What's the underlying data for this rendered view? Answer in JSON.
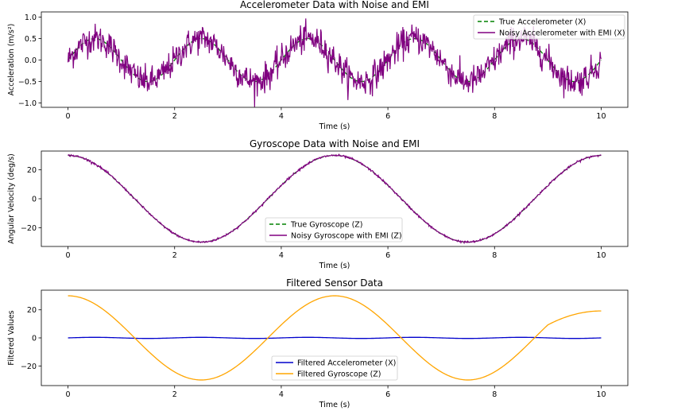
{
  "chart_data": [
    {
      "type": "line",
      "title": "Accelerometer Data with Noise and EMI",
      "xlabel": "Time (s)",
      "ylabel": "Acceleration (m/s²)",
      "xlim": [
        -0.5,
        10.5
      ],
      "ylim": [
        -1.1,
        1.12
      ],
      "xticks": [
        0,
        2,
        4,
        6,
        8,
        10
      ],
      "xtick_labels": [
        "0",
        "2",
        "4",
        "6",
        "8",
        "10"
      ],
      "yticks": [
        -1.0,
        -0.5,
        0.0,
        0.5,
        1.0
      ],
      "ytick_labels": [
        "−1.0",
        "−0.5",
        "0.0",
        "0.5",
        "1.0"
      ],
      "legend": "upper right",
      "grid": false,
      "series": [
        {
          "name": "True Accelerometer (X)",
          "style": "dashed",
          "color": "#008000",
          "function": "0.5*sin(2*pi*0.5*t)",
          "t_range": [
            0,
            10
          ]
        },
        {
          "name": "Noisy Accelerometer with EMI (X)",
          "style": "solid",
          "color": "#800080",
          "function": "0.5*sin(2*pi*0.5*t) + noise",
          "noise_amplitude": 0.2,
          "t_range": [
            0,
            10
          ]
        }
      ]
    },
    {
      "type": "line",
      "title": "Gyroscope Data with Noise and EMI",
      "xlabel": "Time (s)",
      "ylabel": "Angular Velocity (deg/s)",
      "xlim": [
        -0.5,
        10.5
      ],
      "ylim": [
        -33,
        33
      ],
      "xticks": [
        0,
        2,
        4,
        6,
        8,
        10
      ],
      "xtick_labels": [
        "0",
        "2",
        "4",
        "6",
        "8",
        "10"
      ],
      "yticks": [
        -20,
        0,
        20
      ],
      "ytick_labels": [
        "−20",
        "0",
        "20"
      ],
      "legend": "lower center",
      "grid": false,
      "series": [
        {
          "name": "True Gyroscope (Z)",
          "style": "dashed",
          "color": "#008000",
          "function": "30*cos(2*pi*0.2*t)",
          "t_range": [
            0,
            10
          ]
        },
        {
          "name": "Noisy Gyroscope with EMI (Z)",
          "style": "solid",
          "color": "#800080",
          "function": "30*cos(2*pi*0.2*t) + noise",
          "noise_amplitude": 0.4,
          "t_range": [
            0,
            10
          ]
        }
      ]
    },
    {
      "type": "line",
      "title": "Filtered Sensor Data",
      "xlabel": "Time (s)",
      "ylabel": "Filtered Values",
      "xlim": [
        -0.5,
        10.5
      ],
      "ylim": [
        -34,
        34
      ],
      "xticks": [
        0,
        2,
        4,
        6,
        8,
        10
      ],
      "xtick_labels": [
        "0",
        "2",
        "4",
        "6",
        "8",
        "10"
      ],
      "yticks": [
        -20,
        0,
        20
      ],
      "ytick_labels": [
        "−20",
        "0",
        "20"
      ],
      "legend": "lower center",
      "grid": false,
      "series": [
        {
          "name": "Filtered Accelerometer (X)",
          "style": "solid",
          "color": "#0000cc",
          "function": "0.5*sin(2*pi*0.5*t)",
          "t_range": [
            0,
            10
          ]
        },
        {
          "name": "Filtered Gyroscope (Z)",
          "style": "solid",
          "color": "#ffa500",
          "function": "30*cos(2*pi*0.2*t), flattening near 19 at end",
          "t_range": [
            0,
            10
          ],
          "end_value": 19.2
        }
      ]
    }
  ]
}
